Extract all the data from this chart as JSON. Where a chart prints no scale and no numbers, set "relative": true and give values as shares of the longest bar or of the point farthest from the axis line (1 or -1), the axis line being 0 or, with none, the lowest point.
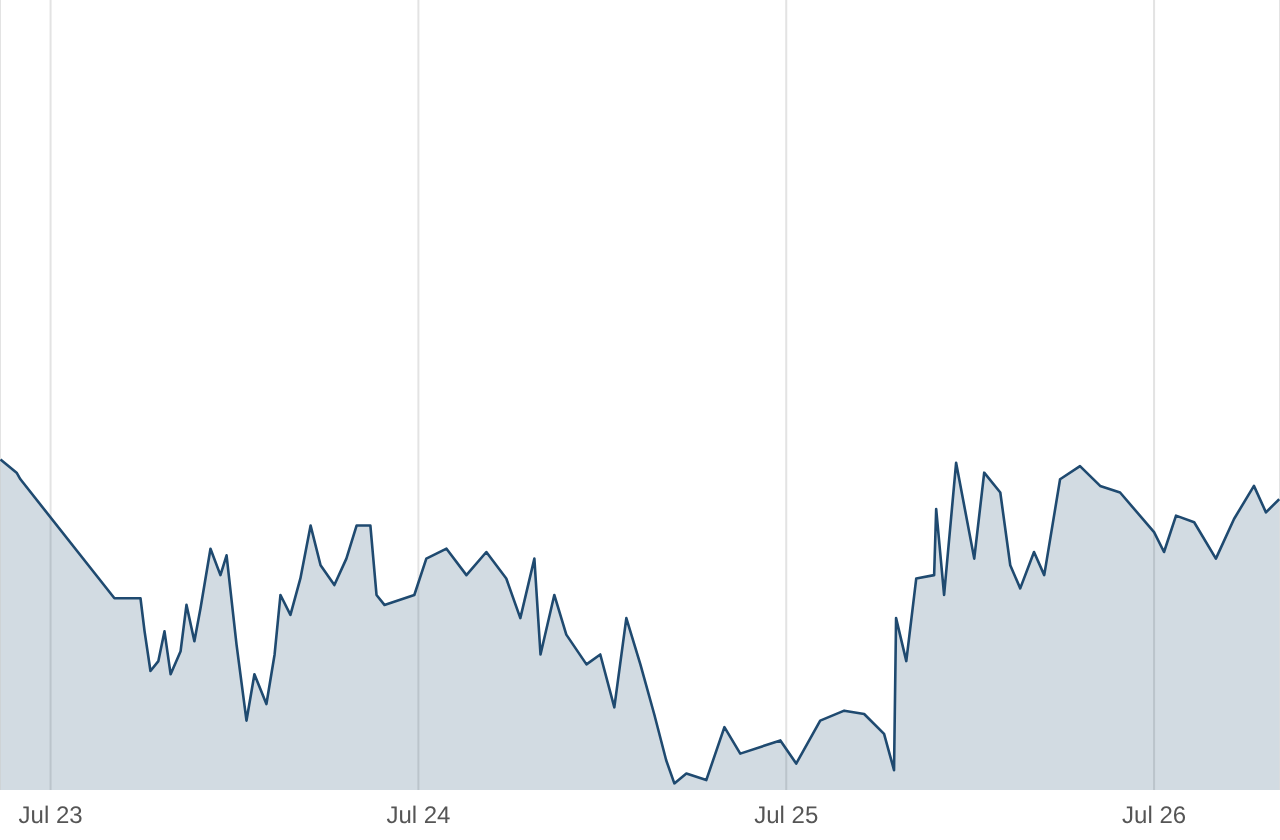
{
  "chart_data": {
    "type": "area",
    "relative": true,
    "color": "#1f4a70",
    "grid": "x",
    "xlim": [
      "--07-22T20:42",
      "--07-26T08:13"
    ],
    "xticks": [
      {
        "value": "--07-23",
        "label": "Jul 23"
      },
      {
        "value": "--07-24",
        "label": "Jul 24"
      },
      {
        "value": "--07-25",
        "label": "Jul 25"
      },
      {
        "value": "--07-26",
        "label": "Jul 26"
      }
    ],
    "x": [
      "--07-22T20:44",
      "--07-22T21:47",
      "--07-22T22:02",
      "--07-23T04:10",
      "--07-23T05:52",
      "--07-23T06:08",
      "--07-23T06:31",
      "--07-23T07:02",
      "--07-23T07:26",
      "--07-23T07:50",
      "--07-23T08:29",
      "--07-23T08:52",
      "--07-23T09:23",
      "--07-23T09:47",
      "--07-23T10:26",
      "--07-23T11:05",
      "--07-23T11:29",
      "--07-23T12:08",
      "--07-23T12:47",
      "--07-23T13:18",
      "--07-23T14:05",
      "--07-23T14:37",
      "--07-23T15:00",
      "--07-23T15:39",
      "--07-23T16:18",
      "--07-23T16:58",
      "--07-23T17:37",
      "--07-23T18:31",
      "--07-23T19:18",
      "--07-23T19:58",
      "--07-23T20:52",
      "--07-23T21:16",
      "--07-23T21:47",
      "--07-23T23:44",
      "--07-24T00:31",
      "--07-24T01:50",
      "--07-24T03:08",
      "--07-24T04:26",
      "--07-24T05:44",
      "--07-24T06:39",
      "--07-24T07:34",
      "--07-24T07:58",
      "--07-24T08:52",
      "--07-24T09:39",
      "--07-24T10:58",
      "--07-24T11:52",
      "--07-24T12:47",
      "--07-24T13:34",
      "--07-24T14:29",
      "--07-24T15:23",
      "--07-24T16:10",
      "--07-24T16:42",
      "--07-24T17:29",
      "--07-24T18:47",
      "--07-24T19:58",
      "--07-24T21:00",
      "--07-24T23:37",
      "--07-25T00:39",
      "--07-25T02:13",
      "--07-25T03:47",
      "--07-25T05:05",
      "--07-25T06:23",
      "--07-25T07:02",
      "--07-25T07:10",
      "--07-25T07:50",
      "--07-25T08:29",
      "--07-25T09:39",
      "--07-25T09:47",
      "--07-25T10:18",
      "--07-25T11:05",
      "--07-25T12:16",
      "--07-25T12:55",
      "--07-25T13:58",
      "--07-25T14:37",
      "--07-25T15:16",
      "--07-25T16:10",
      "--07-25T16:50",
      "--07-25T17:52",
      "--07-25T19:10",
      "--07-25T20:29",
      "--07-25T21:47",
      "--07-26T00:00",
      "--07-26T00:39",
      "--07-26T01:26",
      "--07-26T02:37",
      "--07-26T04:02",
      "--07-26T05:13",
      "--07-26T06:31",
      "--07-26T07:18",
      "--07-26T08:10"
    ],
    "values": [
      1.0,
      0.96,
      0.94,
      0.58,
      0.58,
      0.48,
      0.36,
      0.39,
      0.48,
      0.35,
      0.42,
      0.56,
      0.45,
      0.55,
      0.73,
      0.65,
      0.71,
      0.44,
      0.21,
      0.35,
      0.26,
      0.41,
      0.59,
      0.53,
      0.64,
      0.8,
      0.68,
      0.62,
      0.7,
      0.8,
      0.8,
      0.59,
      0.56,
      0.59,
      0.7,
      0.73,
      0.65,
      0.72,
      0.64,
      0.52,
      0.7,
      0.41,
      0.59,
      0.47,
      0.38,
      0.41,
      0.25,
      0.52,
      0.38,
      0.23,
      0.09,
      0.02,
      0.05,
      0.03,
      0.19,
      0.11,
      0.15,
      0.08,
      0.21,
      0.24,
      0.23,
      0.17,
      0.06,
      0.52,
      0.39,
      0.64,
      0.65,
      0.85,
      0.59,
      0.99,
      0.7,
      0.96,
      0.9,
      0.68,
      0.61,
      0.72,
      0.65,
      0.94,
      0.98,
      0.92,
      0.9,
      0.78,
      0.72,
      0.83,
      0.81,
      0.7,
      0.82,
      0.92,
      0.84,
      0.88
    ]
  }
}
